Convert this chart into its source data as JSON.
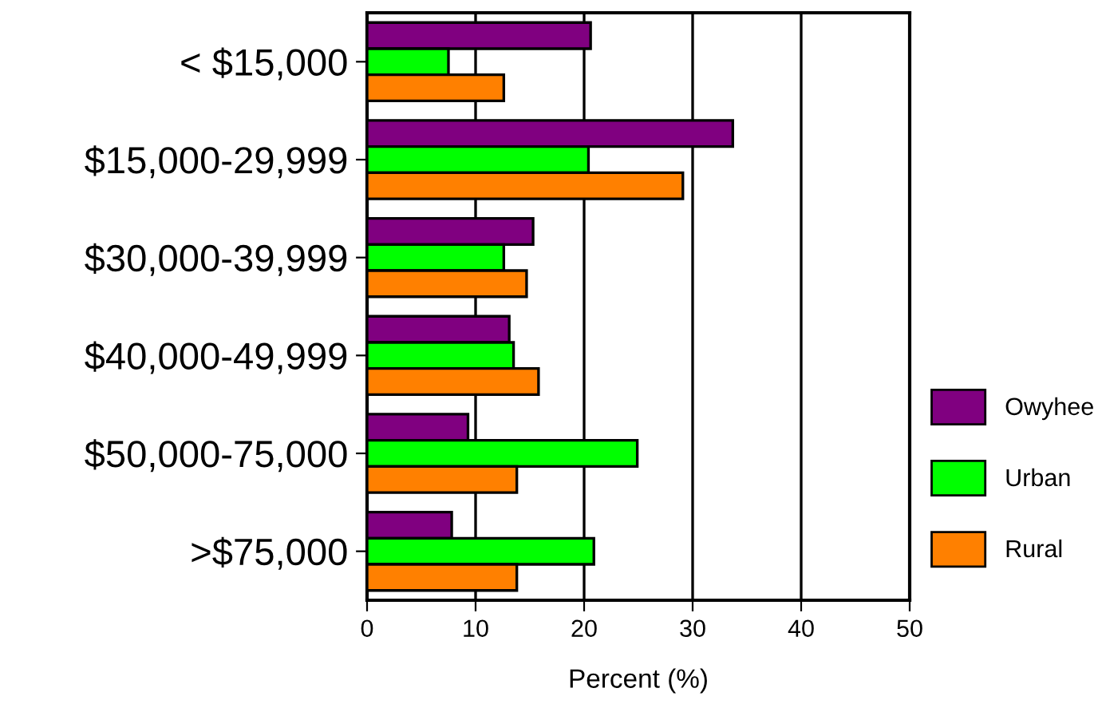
{
  "chart_data": {
    "type": "bar",
    "orientation": "horizontal",
    "xlabel": "Percent (%)",
    "categories": [
      "< $15,000",
      "$15,000-29,999",
      "$30,000-39,999",
      "$40,000-49,999",
      "$50,000-75,000",
      ">$75,000"
    ],
    "series": [
      {
        "name": "Owyhee",
        "color": "#800080",
        "values": [
          20.6,
          33.7,
          15.3,
          13.1,
          9.3,
          7.8
        ]
      },
      {
        "name": "Urban",
        "color": "#00ff00",
        "values": [
          7.5,
          20.4,
          12.6,
          13.5,
          24.9,
          20.9
        ]
      },
      {
        "name": "Rural",
        "color": "#ff8000",
        "values": [
          12.6,
          29.1,
          14.7,
          15.8,
          13.8,
          13.8
        ]
      }
    ],
    "xlim": [
      0,
      50
    ],
    "xticks": [
      0,
      10,
      20,
      30,
      40,
      50
    ],
    "grid": "x",
    "legend": "right"
  }
}
